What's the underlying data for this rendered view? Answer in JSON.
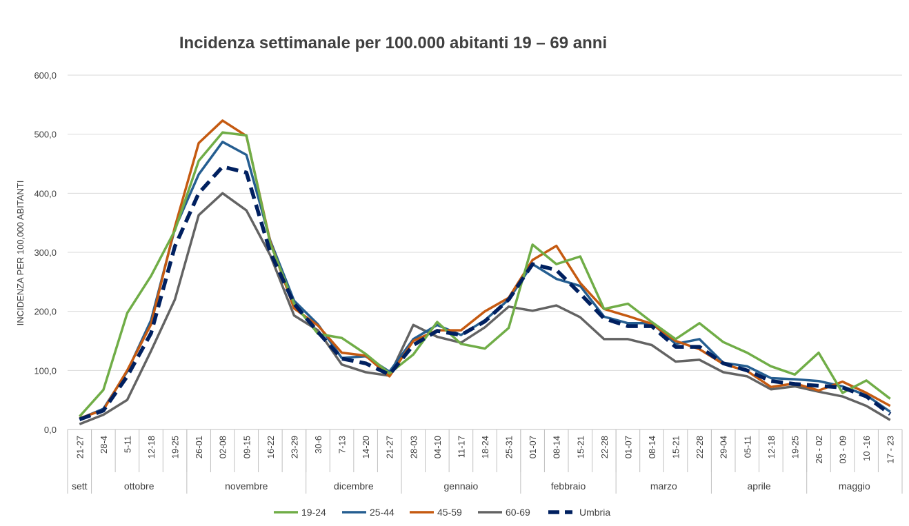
{
  "chart_data": {
    "type": "line",
    "title": "Incidenza settimanale per 100.000 abitanti 19 – 69 anni",
    "ylabel": "INCIDENZA PER 100,000 ABITANTI",
    "xlabel": "",
    "ylim": [
      0,
      600
    ],
    "yticks": [
      "0,0",
      "100,0",
      "200,0",
      "300,0",
      "400,0",
      "500,0",
      "600,0"
    ],
    "grid": true,
    "legend_position": "bottom",
    "x": [
      "21-27",
      "28-4",
      "5-11",
      "12-18",
      "19-25",
      "26-01",
      "02-08",
      "09-15",
      "16-22",
      "23-29",
      "30-6",
      "7-13",
      "14-20",
      "21-27",
      "28-03",
      "04-10",
      "11-17",
      "18-24",
      "25-31",
      "01-07",
      "08-14",
      "15-21",
      "22-28",
      "01-07",
      "08-14",
      "15-21",
      "22-28",
      "29-04",
      "05-11",
      "12-18",
      "19-25",
      "26 - 02",
      "03 - 09",
      "10 -16",
      "17 - 23"
    ],
    "groups": [
      {
        "label": "sett",
        "span": 1
      },
      {
        "label": "ottobre",
        "span": 4
      },
      {
        "label": "novembre",
        "span": 5
      },
      {
        "label": "dicembre",
        "span": 4
      },
      {
        "label": "gennaio",
        "span": 5
      },
      {
        "label": "febbraio",
        "span": 4
      },
      {
        "label": "marzo",
        "span": 4
      },
      {
        "label": "aprile",
        "span": 4
      },
      {
        "label": "maggio",
        "span": 4
      }
    ],
    "series": [
      {
        "name": "19-24",
        "color": "#70ad47",
        "dashed": false,
        "values": [
          22,
          67,
          197,
          260,
          337,
          455,
          503,
          498,
          315,
          213,
          162,
          155,
          128,
          95,
          127,
          182,
          145,
          137,
          172,
          313,
          280,
          293,
          204,
          213,
          182,
          153,
          180,
          148,
          130,
          107,
          93,
          130,
          62,
          83,
          52
        ]
      },
      {
        "name": "25-44",
        "color": "#255e91",
        "dashed": false,
        "values": [
          18,
          35,
          98,
          185,
          340,
          432,
          487,
          465,
          320,
          218,
          178,
          121,
          124,
          98,
          153,
          177,
          160,
          185,
          220,
          280,
          255,
          243,
          191,
          180,
          180,
          145,
          153,
          113,
          107,
          87,
          85,
          82,
          73,
          58,
          30
        ]
      },
      {
        "name": "45-59",
        "color": "#c55a11",
        "dashed": false,
        "values": [
          19,
          33,
          100,
          178,
          343,
          485,
          523,
          497,
          318,
          205,
          176,
          130,
          125,
          90,
          150,
          168,
          168,
          200,
          223,
          287,
          311,
          248,
          204,
          192,
          179,
          150,
          136,
          111,
          99,
          72,
          78,
          66,
          81,
          62,
          40
        ]
      },
      {
        "name": "60-69",
        "color": "#636363",
        "dashed": false,
        "values": [
          9,
          25,
          50,
          133,
          220,
          363,
          400,
          371,
          295,
          193,
          168,
          110,
          97,
          91,
          177,
          157,
          147,
          173,
          208,
          201,
          210,
          190,
          153,
          153,
          143,
          115,
          118,
          97,
          90,
          68,
          73,
          64,
          56,
          40,
          16
        ]
      },
      {
        "name": "Umbria",
        "color": "#002060",
        "dashed": true,
        "values": [
          17,
          32,
          90,
          163,
          310,
          400,
          445,
          435,
          300,
          213,
          165,
          120,
          112,
          93,
          143,
          167,
          160,
          183,
          220,
          280,
          270,
          230,
          188,
          175,
          175,
          140,
          140,
          112,
          100,
          82,
          77,
          74,
          71,
          56,
          26
        ]
      }
    ]
  }
}
